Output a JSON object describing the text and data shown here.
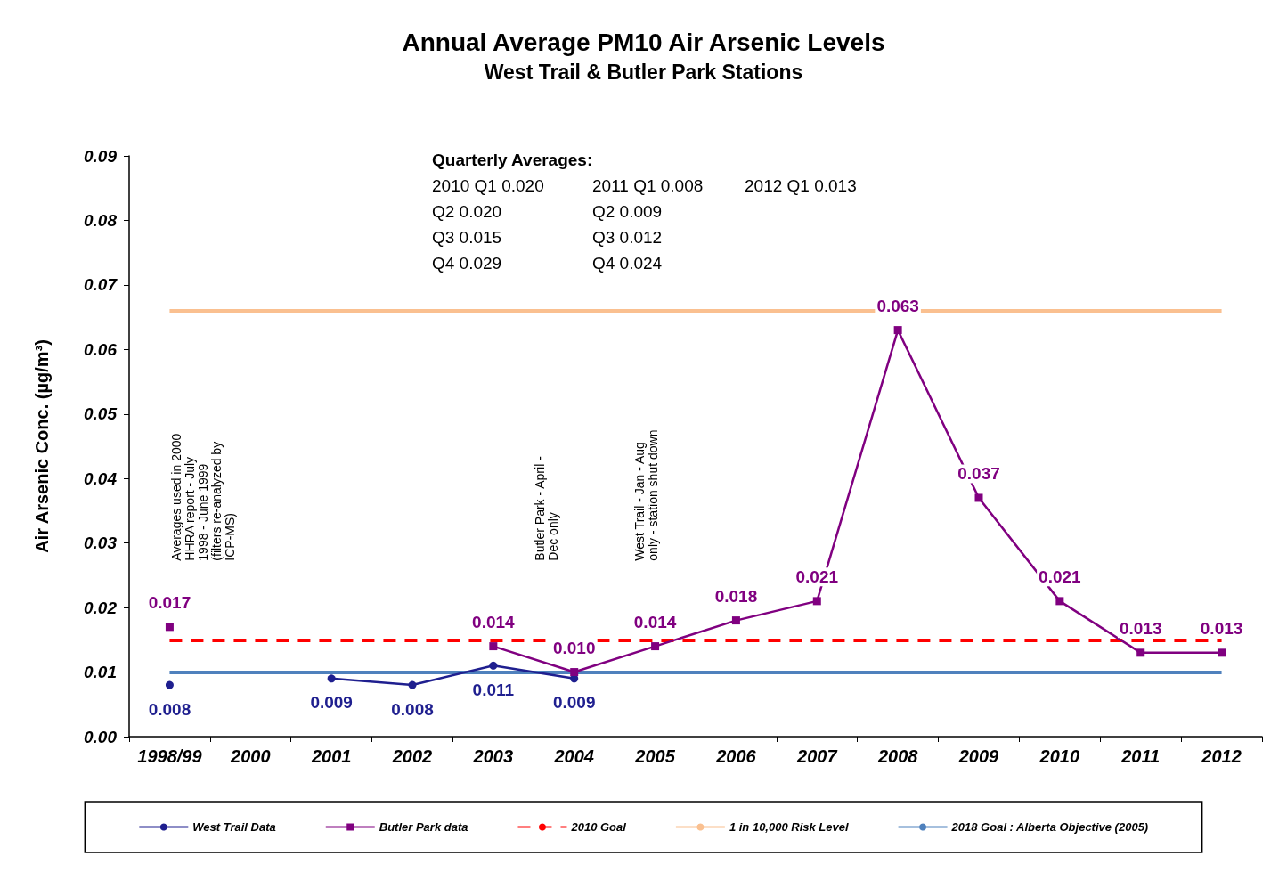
{
  "chart_data": {
    "type": "line",
    "title": "Annual Average PM10 Air Arsenic Levels",
    "subtitle": "West Trail & Butler Park Stations",
    "ylabel": "Air Arsenic Conc. (µg/m³)",
    "categories": [
      "1998/99",
      "2000",
      "2001",
      "2002",
      "2003",
      "2004",
      "2005",
      "2006",
      "2007",
      "2008",
      "2009",
      "2010",
      "2011",
      "2012"
    ],
    "series": [
      {
        "name": "West Trail Data",
        "color": "#1f1f8f",
        "marker": "circle",
        "values": [
          0.008,
          null,
          0.009,
          0.008,
          0.011,
          0.009,
          null,
          null,
          null,
          null,
          null,
          null,
          null,
          null
        ],
        "value_labels": [
          "0.008",
          null,
          "0.009",
          "0.008",
          "0.011",
          "0.009",
          null,
          null,
          null,
          null,
          null,
          null,
          null,
          null
        ]
      },
      {
        "name": "Butler Park data",
        "color": "#800080",
        "marker": "square",
        "values": [
          0.017,
          null,
          null,
          null,
          0.014,
          0.01,
          0.014,
          0.018,
          0.021,
          0.063,
          0.037,
          0.021,
          0.013,
          0.013
        ],
        "value_labels": [
          "0.017",
          null,
          null,
          null,
          "0.014",
          "0.010",
          "0.014",
          "0.018",
          "0.021",
          "0.063",
          "0.037",
          "0.021",
          "0.013",
          "0.013"
        ]
      }
    ],
    "ref_lines": [
      {
        "axis": "y",
        "value": 0.015,
        "label": "2010 Goal",
        "color": "#ff0000",
        "line_style": "dashed"
      },
      {
        "axis": "y",
        "value": 0.066,
        "label": "1 in 10,000 Risk Level",
        "color": "#fac090",
        "line_style": "solid"
      },
      {
        "axis": "y",
        "value": 0.01,
        "label": "2018 Goal : Alberta Objective (2005)",
        "color": "#4f81bd",
        "line_style": "solid"
      }
    ],
    "ylim": [
      0,
      0.09
    ],
    "yticks": [
      {
        "value": 0,
        "label": "0.00"
      },
      {
        "value": 0.01,
        "label": "0.01"
      },
      {
        "value": 0.02,
        "label": "0.02"
      },
      {
        "value": 0.03,
        "label": "0.03"
      },
      {
        "value": 0.04,
        "label": "0.04"
      },
      {
        "value": 0.05,
        "label": "0.05"
      },
      {
        "value": 0.06,
        "label": "0.06"
      },
      {
        "value": 0.07,
        "label": "0.07"
      },
      {
        "value": 0.08,
        "label": "0.08"
      },
      {
        "value": 0.09,
        "label": "0.09"
      }
    ],
    "grid": false,
    "legend": "bottom",
    "annotations": [
      "Quarterly Averages:",
      "2010 Q1 0.020\nQ2 0.020\nQ3 0.015\nQ4 0.029",
      "2011 Q1 0.008\nQ2 0.009\nQ3 0.012\nQ4 0.024",
      "2012 Q1 0.013",
      "Averages used in 2000 HHRA report - July 1998 - June 1999 (filters re-analyzed by ICP-MS)",
      "Butler Park - April - Dec only",
      "West Trail - Jan - Aug only - station shut down"
    ]
  }
}
